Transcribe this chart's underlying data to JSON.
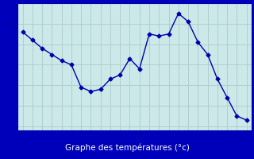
{
  "hours": [
    0,
    1,
    2,
    3,
    4,
    5,
    6,
    7,
    8,
    9,
    10,
    11,
    12,
    13,
    14,
    15,
    16,
    17,
    18,
    19,
    20,
    21,
    22,
    23
  ],
  "temperatures": [
    9.6,
    9.2,
    8.8,
    8.5,
    8.2,
    8.0,
    6.9,
    6.7,
    6.8,
    7.3,
    7.5,
    8.3,
    7.8,
    9.5,
    9.4,
    9.5,
    10.5,
    10.1,
    9.1,
    8.5,
    7.3,
    6.4,
    5.5,
    5.3
  ],
  "line_color": "#0000aa",
  "marker": "D",
  "marker_size": 2.5,
  "bg_color": "#cce8e8",
  "grid_color": "#aacccc",
  "xlabel": "Graphe des températures (°c)",
  "xlabel_color": "#ffffff",
  "xlabel_fontsize": 7.5,
  "tick_color": "#0000aa",
  "tick_fontsize": 6.5,
  "ylim": [
    4.8,
    11.0
  ],
  "xlim": [
    -0.5,
    23.5
  ],
  "yticks": [
    5,
    6,
    7,
    8,
    9,
    10
  ],
  "xticks": [
    0,
    1,
    2,
    3,
    4,
    5,
    6,
    7,
    8,
    9,
    10,
    11,
    12,
    13,
    14,
    15,
    16,
    17,
    18,
    19,
    20,
    21,
    22,
    23
  ],
  "spine_color": "#0000aa",
  "bottom_bar_color": "#0000bb",
  "line_width": 1.0
}
